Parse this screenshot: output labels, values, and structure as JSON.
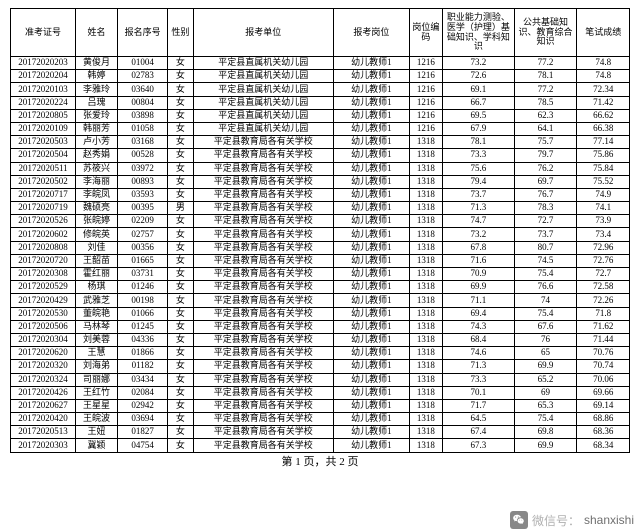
{
  "table": {
    "headers": [
      "准考证号",
      "姓名",
      "报名序号",
      "性别",
      "报考单位",
      "报考岗位",
      "岗位编码",
      "职业能力测验、医学（护理）基础知识、学科知识",
      "公共基础知识、教育综合知识",
      "笔试成绩"
    ],
    "rows": [
      [
        "20172020203",
        "黄俊月",
        "01004",
        "女",
        "平定县直属机关幼儿园",
        "幼儿教师1",
        "1216",
        "73.2",
        "77.2",
        "74.8"
      ],
      [
        "20172020204",
        "韩婷",
        "02783",
        "女",
        "平定县直属机关幼儿园",
        "幼儿教师1",
        "1216",
        "72.6",
        "78.1",
        "74.8"
      ],
      [
        "20172020103",
        "李雅玲",
        "03640",
        "女",
        "平定县直属机关幼儿园",
        "幼儿教师1",
        "1216",
        "69.1",
        "77.2",
        "72.34"
      ],
      [
        "20172020224",
        "吕瑰",
        "00804",
        "女",
        "平定县直属机关幼儿园",
        "幼儿教师1",
        "1216",
        "66.7",
        "78.5",
        "71.42"
      ],
      [
        "20172020805",
        "张爱玲",
        "03898",
        "女",
        "平定县直属机关幼儿园",
        "幼儿教师1",
        "1216",
        "69.5",
        "62.3",
        "66.62"
      ],
      [
        "20172020109",
        "韩丽芳",
        "01058",
        "女",
        "平定县直属机关幼儿园",
        "幼儿教师1",
        "1216",
        "67.9",
        "64.1",
        "66.38"
      ],
      [
        "20172020503",
        "卢小芳",
        "03168",
        "女",
        "平定县教育局各有关学校",
        "幼儿教师1",
        "1318",
        "78.1",
        "75.7",
        "77.14"
      ],
      [
        "20172020504",
        "赵秀娟",
        "00528",
        "女",
        "平定县教育局各有关学校",
        "幼儿教师1",
        "1318",
        "73.3",
        "79.7",
        "75.86"
      ],
      [
        "20172020511",
        "苏筱兴",
        "03972",
        "女",
        "平定县教育局各有关学校",
        "幼儿教师1",
        "1318",
        "75.6",
        "76.2",
        "75.84"
      ],
      [
        "20172020502",
        "李海丽",
        "00893",
        "女",
        "平定县教育局各有关学校",
        "幼儿教师1",
        "1318",
        "79.4",
        "69.7",
        "75.52"
      ],
      [
        "20172020717",
        "李皖凤",
        "03593",
        "女",
        "平定县教育局各有关学校",
        "幼儿教师1",
        "1318",
        "73.7",
        "76.7",
        "74.9"
      ],
      [
        "20172020719",
        "魏硕亮",
        "00395",
        "男",
        "平定县教育局各有关学校",
        "幼儿教师1",
        "1318",
        "71.3",
        "78.3",
        "74.1"
      ],
      [
        "20172020526",
        "张皖婷",
        "02209",
        "女",
        "平定县教育局各有关学校",
        "幼儿教师1",
        "1318",
        "74.7",
        "72.7",
        "73.9"
      ],
      [
        "20172020602",
        "修皖英",
        "02757",
        "女",
        "平定县教育局各有关学校",
        "幼儿教师1",
        "1318",
        "73.2",
        "73.7",
        "73.4"
      ],
      [
        "20172020808",
        "刘佳",
        "00356",
        "女",
        "平定县教育局各有关学校",
        "幼儿教师1",
        "1318",
        "67.8",
        "80.7",
        "72.96"
      ],
      [
        "20172020720",
        "王韶苗",
        "01665",
        "女",
        "平定县教育局各有关学校",
        "幼儿教师1",
        "1318",
        "71.6",
        "74.5",
        "72.76"
      ],
      [
        "20172020308",
        "霍红丽",
        "03731",
        "女",
        "平定县教育局各有关学校",
        "幼儿教师1",
        "1318",
        "70.9",
        "75.4",
        "72.7"
      ],
      [
        "20172020529",
        "杨琪",
        "01246",
        "女",
        "平定县教育局各有关学校",
        "幼儿教师1",
        "1318",
        "69.9",
        "76.6",
        "72.58"
      ],
      [
        "20172020429",
        "武雅芝",
        "00198",
        "女",
        "平定县教育局各有关学校",
        "幼儿教师1",
        "1318",
        "71.1",
        "74",
        "72.26"
      ],
      [
        "20172020530",
        "董皖艳",
        "01066",
        "女",
        "平定县教育局各有关学校",
        "幼儿教师1",
        "1318",
        "69.4",
        "75.4",
        "71.8"
      ],
      [
        "20172020506",
        "马林琴",
        "01245",
        "女",
        "平定县教育局各有关学校",
        "幼儿教师1",
        "1318",
        "74.3",
        "67.6",
        "71.62"
      ],
      [
        "20172020304",
        "刘美蓉",
        "04336",
        "女",
        "平定县教育局各有关学校",
        "幼儿教师1",
        "1318",
        "68.4",
        "76",
        "71.44"
      ],
      [
        "20172020620",
        "王慧",
        "01866",
        "女",
        "平定县教育局各有关学校",
        "幼儿教师1",
        "1318",
        "74.6",
        "65",
        "70.76"
      ],
      [
        "20172020320",
        "刘海弟",
        "01182",
        "女",
        "平定县教育局各有关学校",
        "幼儿教师1",
        "1318",
        "71.3",
        "69.9",
        "70.74"
      ],
      [
        "20172020324",
        "司丽娜",
        "03434",
        "女",
        "平定县教育局各有关学校",
        "幼儿教师1",
        "1318",
        "73.3",
        "65.2",
        "70.06"
      ],
      [
        "20172020426",
        "王红竹",
        "02084",
        "女",
        "平定县教育局各有关学校",
        "幼儿教师1",
        "1318",
        "70.1",
        "69",
        "69.66"
      ],
      [
        "20172020627",
        "王星星",
        "02942",
        "女",
        "平定县教育局各有关学校",
        "幼儿教师1",
        "1318",
        "71.7",
        "65.3",
        "69.14"
      ],
      [
        "20172020420",
        "王皖波",
        "03694",
        "女",
        "平定县教育局各有关学校",
        "幼儿教师1",
        "1318",
        "64.5",
        "75.4",
        "68.86"
      ],
      [
        "20172020513",
        "王妞",
        "01827",
        "女",
        "平定县教育局各有关学校",
        "幼儿教师1",
        "1318",
        "67.4",
        "69.8",
        "68.36"
      ],
      [
        "20172020303",
        "冀颖",
        "04754",
        "女",
        "平定县教育局各有关学校",
        "幼儿教师1",
        "1318",
        "67.3",
        "69.9",
        "68.34"
      ]
    ],
    "footer": "第 1 页，共 2 页"
  },
  "watermark": {
    "label": "微信号：",
    "id": "shanxishi"
  },
  "colors": {
    "border": "#000000",
    "background": "#ffffff",
    "wm_label": "#b0b0b0",
    "wm_id": "#707070",
    "icon_bg": "#888888"
  }
}
